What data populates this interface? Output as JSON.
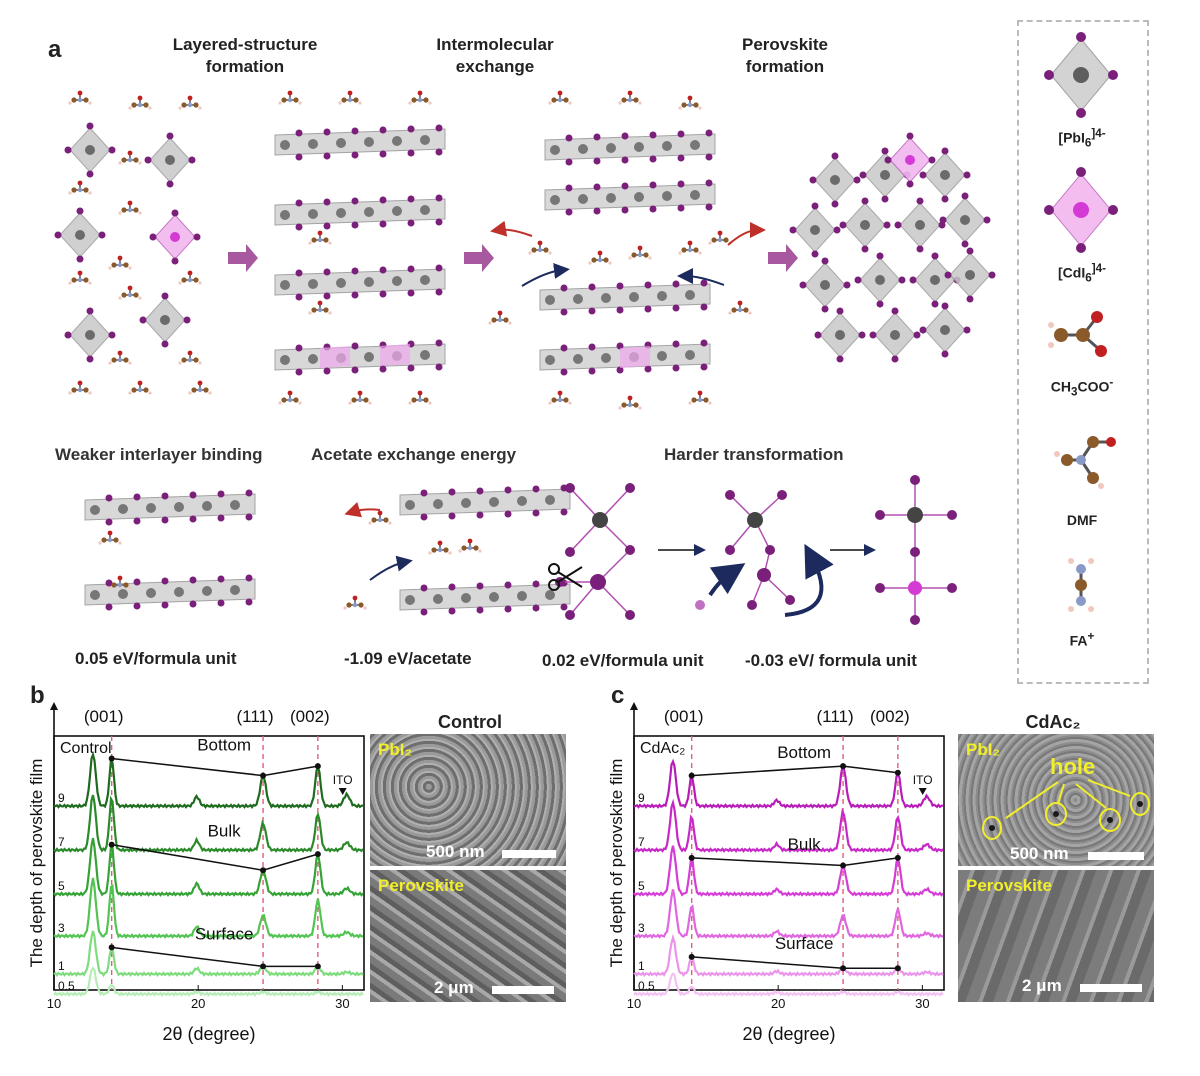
{
  "panel_a": {
    "letter": "a",
    "stages": [
      {
        "line1": "Layered-structure",
        "line2": "formation"
      },
      {
        "line1": "Intermolecular",
        "line2": "exchange"
      },
      {
        "line1": "Perovskite",
        "line2": "formation"
      }
    ],
    "mechanisms": {
      "weaker": {
        "title": "Weaker interlayer binding",
        "energy": "0.05 eV/formula unit"
      },
      "acetate": {
        "title": "Acetate exchange energy",
        "energy": "-1.09 eV/acetate"
      },
      "harder": {
        "title": "Harder transformation",
        "energy_left": "0.02 eV/formula unit",
        "energy_right": "-0.03 eV/ formula unit"
      }
    },
    "legend": {
      "pbi6": {
        "base": "[PbI",
        "sub": "6",
        "sup": "]4-"
      },
      "cdi6": {
        "base": "[CdI",
        "sub": "6",
        "sup": "]4-"
      },
      "acetate": {
        "base": "CH",
        "sub": "3",
        "rest": "COO",
        "sup": "-"
      },
      "dmf": "DMF",
      "fa": {
        "base": "FA",
        "sup": "+"
      }
    }
  },
  "panel_b": {
    "letter": "b",
    "image_title": "Control",
    "sem_top_label": "PbI₂",
    "sem_top_scale": "500 nm",
    "sem_bottom_label": "Perovskite",
    "sem_bottom_scale": "2 μm"
  },
  "panel_c": {
    "letter": "c",
    "image_title": "CdAc₂",
    "sem_top_label": "PbI₂",
    "sem_top_hole": "hole",
    "sem_top_scale": "500 nm",
    "sem_bottom_label": "Perovskite",
    "sem_bottom_scale": "2 μm"
  },
  "chart_data": [
    {
      "type": "line",
      "panel": "b",
      "sample_label": "Control",
      "xlabel": "2θ (degree)",
      "ylabel": "The depth of perovskite film",
      "xlim": [
        10,
        31.5
      ],
      "xticks": [
        10,
        20,
        30
      ],
      "peak_labels": [
        {
          "label": "(001)",
          "x": 14.0
        },
        {
          "label": "(111)",
          "x": 24.5
        },
        {
          "label": "(002)",
          "x": 28.3
        }
      ],
      "peaks": [
        12.7,
        14.0,
        19.9,
        24.5,
        28.3,
        30.3
      ],
      "ito_marker": {
        "label": "ITO",
        "x": 30.3
      },
      "depths": [
        "9",
        "7",
        "5",
        "3",
        "1",
        "0.5"
      ],
      "series_colors": [
        "#1e6b1e",
        "#2a8a2a",
        "#36a336",
        "#52c452",
        "#7edc7e",
        "#b6edb6"
      ],
      "intensities": [
        [
          0.55,
          0.5,
          0.1,
          0.32,
          0.42,
          0.12
        ],
        [
          0.58,
          0.55,
          0.1,
          0.28,
          0.38,
          0.08
        ],
        [
          0.58,
          0.52,
          0.11,
          0.25,
          0.42,
          0.06
        ],
        [
          0.6,
          0.55,
          0.1,
          0.22,
          0.38,
          0.04
        ],
        [
          0.45,
          0.28,
          0.06,
          0.08,
          0.08,
          0.02
        ],
        [
          0.28,
          0.1,
          0.02,
          0.02,
          0.02,
          0.0
        ]
      ],
      "trend_annotations": [
        {
          "label": "Bottom",
          "depth": "9"
        },
        {
          "label": "Bulk",
          "depth": "5"
        },
        {
          "label": "Surface",
          "depth": "1"
        }
      ]
    },
    {
      "type": "line",
      "panel": "c",
      "sample_label": "CdAc₂",
      "xlabel": "2θ (degree)",
      "ylabel": "The depth of perovskite film",
      "xlim": [
        10,
        31.5
      ],
      "xticks": [
        10,
        20,
        30
      ],
      "peak_labels": [
        {
          "label": "(001)",
          "x": 14.0
        },
        {
          "label": "(111)",
          "x": 24.5
        },
        {
          "label": "(002)",
          "x": 28.3
        }
      ],
      "peaks": [
        12.7,
        14.0,
        19.9,
        24.5,
        28.3,
        30.3
      ],
      "ito_marker": {
        "label": "ITO",
        "x": 30.3
      },
      "depths": [
        "9",
        "7",
        "5",
        "3",
        "1",
        "0.5"
      ],
      "series_colors": [
        "#b81cb8",
        "#c828c8",
        "#d63cd6",
        "#e066e0",
        "#ea94ea",
        "#f3c2f3"
      ],
      "intensities": [
        [
          0.48,
          0.32,
          0.06,
          0.42,
          0.35,
          0.1
        ],
        [
          0.5,
          0.35,
          0.06,
          0.4,
          0.35,
          0.06
        ],
        [
          0.5,
          0.38,
          0.05,
          0.3,
          0.38,
          0.05
        ],
        [
          0.48,
          0.32,
          0.05,
          0.22,
          0.28,
          0.03
        ],
        [
          0.38,
          0.18,
          0.03,
          0.06,
          0.06,
          0.02
        ],
        [
          0.22,
          0.08,
          0.02,
          0.02,
          0.02,
          0.0
        ]
      ],
      "trend_annotations": [
        {
          "label": "Bottom",
          "depth": "9"
        },
        {
          "label": "Bulk",
          "depth": "5"
        },
        {
          "label": "Surface",
          "depth": "1"
        }
      ]
    }
  ]
}
